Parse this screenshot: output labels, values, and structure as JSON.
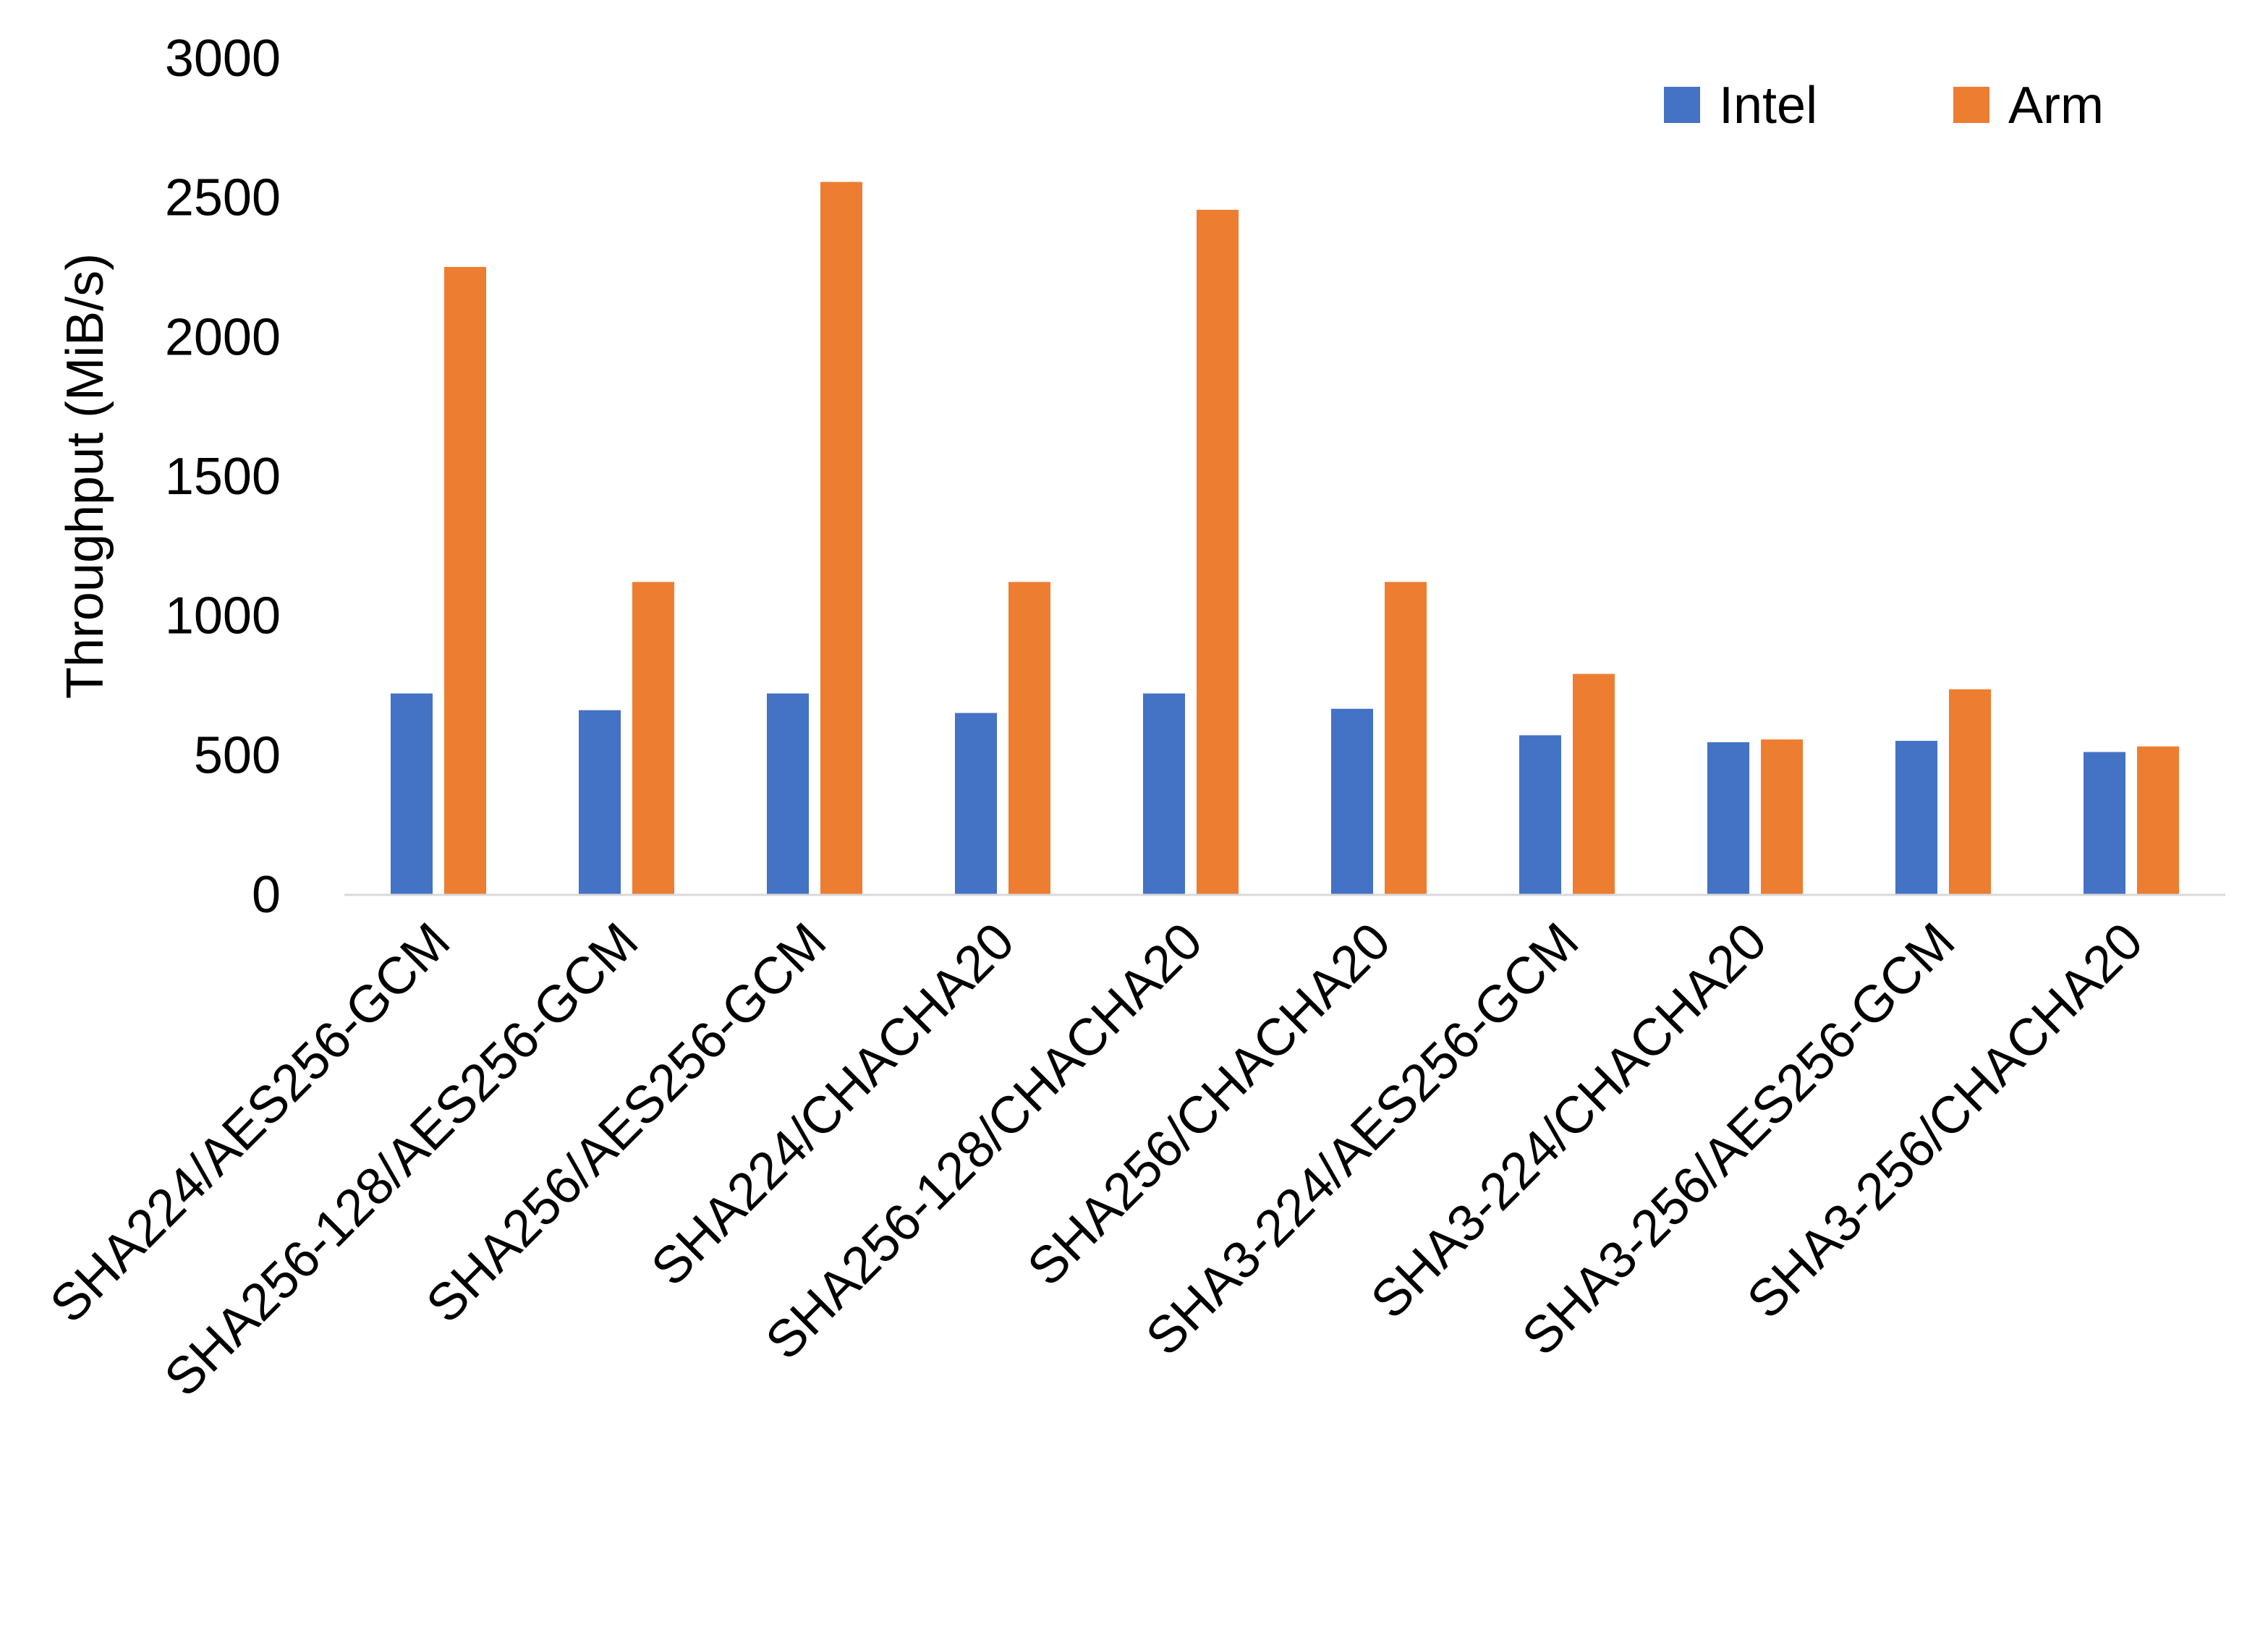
{
  "chart_data": {
    "type": "bar",
    "title": "",
    "xlabel": "",
    "ylabel": "Throughput (MiB/s)",
    "ylim": [
      0,
      3000
    ],
    "yticks": [
      0,
      500,
      1000,
      1500,
      2000,
      2500,
      3000
    ],
    "grid": false,
    "legend_position": "top-right",
    "categories": [
      "SHA224/AES256-GCM",
      "SHA256-128/AES256-GCM",
      "SHA256/AES256-GCM",
      "SHA224/CHACHA20",
      "SHA256-128/CHACHA20",
      "SHA256/CHACHA20",
      "SHA3-224/AES256-GCM",
      "SHA3-224/CHACHA20",
      "SHA3-256/AES256-GCM",
      "SHA3-256/CHACHA20"
    ],
    "series": [
      {
        "name": "Intel",
        "color": "#4472C4",
        "values": [
          720,
          660,
          720,
          650,
          720,
          665,
          570,
          545,
          550,
          510
        ]
      },
      {
        "name": "Arm",
        "color": "#ED7D31",
        "values": [
          2250,
          1120,
          2555,
          1120,
          2455,
          1120,
          790,
          555,
          735,
          530
        ]
      }
    ]
  }
}
